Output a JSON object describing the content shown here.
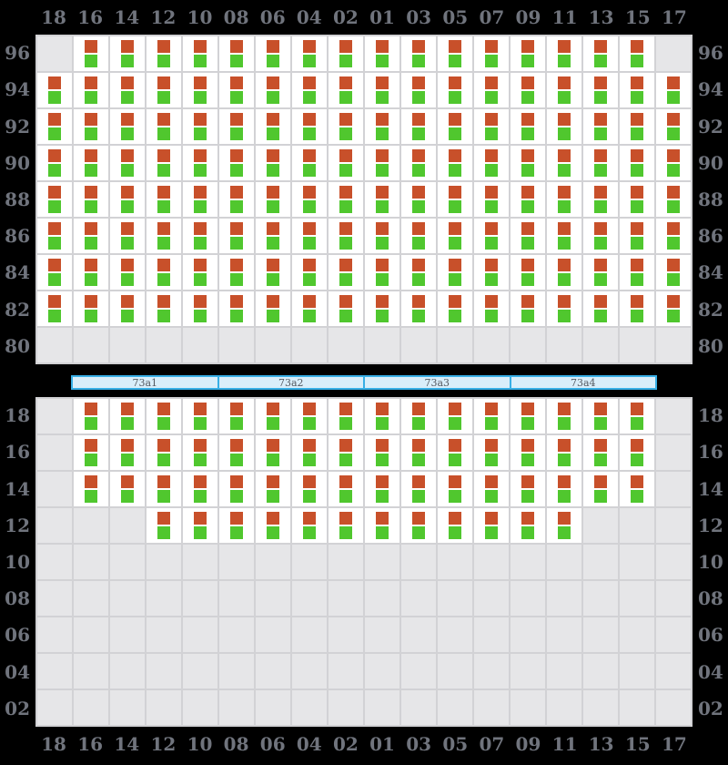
{
  "columns": [
    "18",
    "16",
    "14",
    "12",
    "10",
    "08",
    "06",
    "04",
    "02",
    "01",
    "03",
    "05",
    "07",
    "09",
    "11",
    "13",
    "15",
    "17"
  ],
  "upper_deck": {
    "rows": [
      {
        "label": "96",
        "cells": "011111111111111110"
      },
      {
        "label": "94",
        "cells": "111111111111111111"
      },
      {
        "label": "92",
        "cells": "111111111111111111"
      },
      {
        "label": "90",
        "cells": "111111111111111111"
      },
      {
        "label": "88",
        "cells": "111111111111111111"
      },
      {
        "label": "86",
        "cells": "111111111111111111"
      },
      {
        "label": "84",
        "cells": "111111111111111111"
      },
      {
        "label": "82",
        "cells": "111111111111111111"
      },
      {
        "label": "80",
        "cells": "000000000000000000"
      }
    ]
  },
  "lower_deck": {
    "rows": [
      {
        "label": "18",
        "cells": "011111111111111110"
      },
      {
        "label": "16",
        "cells": "011111111111111110"
      },
      {
        "label": "14",
        "cells": "011111111111111110"
      },
      {
        "label": "12",
        "cells": "000111111111111000"
      },
      {
        "label": "10",
        "cells": "000000000000000000"
      },
      {
        "label": "08",
        "cells": "000000000000000000"
      },
      {
        "label": "06",
        "cells": "000000000000000000"
      },
      {
        "label": "04",
        "cells": "000000000000000000"
      },
      {
        "label": "02",
        "cells": "000000000000000000"
      }
    ]
  },
  "section_bar": {
    "segments": [
      "73a1",
      "73a2",
      "73a3",
      "73a4"
    ]
  },
  "cell_indicators": {
    "upper": "upper-berth-indicator",
    "lower": "lower-berth-indicator"
  },
  "colors": {
    "background": "#000000",
    "grid_line": "#d2d2d5",
    "empty_cell": "#e6e6e8",
    "occupied_cell": "#ffffff",
    "upper_berth": "#c8502a",
    "lower_berth": "#50c72e",
    "label_text": "#70747d",
    "bar_fill": "#daeefa",
    "bar_border": "#38afe6",
    "bar_text": "#555a62"
  }
}
